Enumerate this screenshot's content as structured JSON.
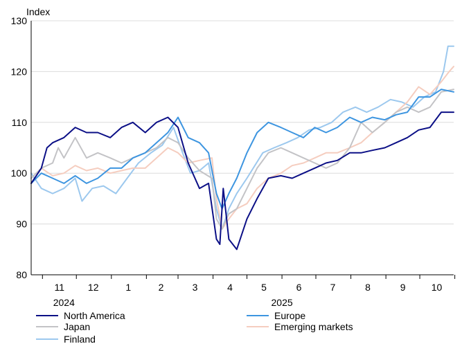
{
  "chart_data": {
    "type": "line",
    "ylabel": "Index",
    "ylim": [
      80,
      130
    ],
    "yticks": [
      80,
      90,
      100,
      110,
      120,
      130
    ],
    "grid": "horizontal",
    "xlim": [
      "2024-10-22",
      "2025-10-31"
    ],
    "month_ticks": [
      "2024-11-01",
      "2024-12-01",
      "2025-01-01",
      "2025-02-01",
      "2025-03-01",
      "2025-04-01",
      "2025-05-01",
      "2025-06-01",
      "2025-07-01",
      "2025-08-01",
      "2025-09-01",
      "2025-10-01",
      "2025-11-01"
    ],
    "month_labels": [
      {
        "text": "11",
        "date": "2024-11-16"
      },
      {
        "text": "12",
        "date": "2024-12-16"
      },
      {
        "text": "1",
        "date": "2025-01-16"
      },
      {
        "text": "2",
        "date": "2025-02-14"
      },
      {
        "text": "3",
        "date": "2025-03-16"
      },
      {
        "text": "4",
        "date": "2025-04-16"
      },
      {
        "text": "5",
        "date": "2025-05-16"
      },
      {
        "text": "6",
        "date": "2025-06-16"
      },
      {
        "text": "7",
        "date": "2025-07-16"
      },
      {
        "text": "8",
        "date": "2025-08-16"
      },
      {
        "text": "9",
        "date": "2025-09-16"
      },
      {
        "text": "10",
        "date": "2025-10-16"
      }
    ],
    "year_labels": [
      {
        "text": "2024",
        "date": "2024-11-20"
      },
      {
        "text": "2025",
        "date": "2025-06-01"
      }
    ],
    "legend_placement": "bottom",
    "series": [
      {
        "name": "Finland",
        "color": "#9cc8ee",
        "points": [
          [
            "2024-10-22",
            100
          ],
          [
            "2024-10-31",
            97
          ],
          [
            "2024-11-10",
            96
          ],
          [
            "2024-11-20",
            97
          ],
          [
            "2024-11-30",
            99
          ],
          [
            "2024-12-06",
            94.5
          ],
          [
            "2024-12-15",
            97
          ],
          [
            "2024-12-25",
            97.5
          ],
          [
            "2025-01-05",
            96
          ],
          [
            "2025-01-15",
            99
          ],
          [
            "2025-01-25",
            102
          ],
          [
            "2025-02-05",
            104
          ],
          [
            "2025-02-15",
            105.5
          ],
          [
            "2025-02-25",
            109
          ],
          [
            "2025-03-05",
            104
          ],
          [
            "2025-03-12",
            100
          ],
          [
            "2025-03-20",
            100.5
          ],
          [
            "2025-03-28",
            102
          ],
          [
            "2025-04-04",
            93
          ],
          [
            "2025-04-09",
            89
          ],
          [
            "2025-04-15",
            93
          ],
          [
            "2025-04-22",
            96
          ],
          [
            "2025-05-01",
            99
          ],
          [
            "2025-05-15",
            104
          ],
          [
            "2025-05-25",
            105
          ],
          [
            "2025-06-05",
            106
          ],
          [
            "2025-06-15",
            107
          ],
          [
            "2025-06-25",
            108.5
          ],
          [
            "2025-07-05",
            109
          ],
          [
            "2025-07-15",
            110
          ],
          [
            "2025-07-25",
            112
          ],
          [
            "2025-08-05",
            113
          ],
          [
            "2025-08-15",
            112
          ],
          [
            "2025-08-25",
            113
          ],
          [
            "2025-09-05",
            114.5
          ],
          [
            "2025-09-15",
            114
          ],
          [
            "2025-09-25",
            113
          ],
          [
            "2025-10-05",
            115
          ],
          [
            "2025-10-15",
            116
          ],
          [
            "2025-10-22",
            120
          ],
          [
            "2025-10-26",
            125
          ],
          [
            "2025-10-31",
            125
          ]
        ]
      },
      {
        "name": "Emerging markets",
        "color": "#f5cdbf",
        "points": [
          [
            "2024-10-22",
            99
          ],
          [
            "2024-10-31",
            101
          ],
          [
            "2024-11-10",
            99.5
          ],
          [
            "2024-11-20",
            100
          ],
          [
            "2024-11-30",
            101.5
          ],
          [
            "2024-12-10",
            100.5
          ],
          [
            "2024-12-20",
            101
          ],
          [
            "2024-12-31",
            100
          ],
          [
            "2025-01-10",
            100.5
          ],
          [
            "2025-01-20",
            101
          ],
          [
            "2025-01-31",
            101
          ],
          [
            "2025-02-10",
            103
          ],
          [
            "2025-02-20",
            105
          ],
          [
            "2025-03-01",
            104
          ],
          [
            "2025-03-10",
            102
          ],
          [
            "2025-03-20",
            102.5
          ],
          [
            "2025-03-31",
            103
          ],
          [
            "2025-04-04",
            95
          ],
          [
            "2025-04-09",
            89
          ],
          [
            "2025-04-15",
            91
          ],
          [
            "2025-04-22",
            93
          ],
          [
            "2025-05-01",
            94
          ],
          [
            "2025-05-10",
            97
          ],
          [
            "2025-05-20",
            99
          ],
          [
            "2025-05-31",
            100
          ],
          [
            "2025-06-10",
            101.5
          ],
          [
            "2025-06-20",
            102
          ],
          [
            "2025-06-30",
            103
          ],
          [
            "2025-07-10",
            104
          ],
          [
            "2025-07-20",
            104
          ],
          [
            "2025-07-31",
            105
          ],
          [
            "2025-08-10",
            106
          ],
          [
            "2025-08-20",
            108
          ],
          [
            "2025-08-31",
            110
          ],
          [
            "2025-09-10",
            112
          ],
          [
            "2025-09-20",
            114
          ],
          [
            "2025-09-30",
            117
          ],
          [
            "2025-10-10",
            115.5
          ],
          [
            "2025-10-20",
            118
          ],
          [
            "2025-10-27",
            120
          ],
          [
            "2025-10-31",
            121
          ]
        ]
      },
      {
        "name": "Japan",
        "color": "#c3c3c6",
        "points": [
          [
            "2024-10-22",
            99
          ],
          [
            "2024-10-31",
            101
          ],
          [
            "2024-11-10",
            102
          ],
          [
            "2024-11-15",
            105
          ],
          [
            "2024-11-20",
            103
          ],
          [
            "2024-11-30",
            107
          ],
          [
            "2024-12-10",
            103
          ],
          [
            "2024-12-20",
            104
          ],
          [
            "2024-12-31",
            103
          ],
          [
            "2025-01-10",
            102
          ],
          [
            "2025-01-20",
            103
          ],
          [
            "2025-01-31",
            104
          ],
          [
            "2025-02-10",
            105
          ],
          [
            "2025-02-20",
            107
          ],
          [
            "2025-03-01",
            106
          ],
          [
            "2025-03-10",
            103
          ],
          [
            "2025-03-20",
            100.5
          ],
          [
            "2025-03-31",
            99
          ],
          [
            "2025-04-04",
            91
          ],
          [
            "2025-04-09",
            89
          ],
          [
            "2025-04-15",
            92
          ],
          [
            "2025-04-22",
            93
          ],
          [
            "2025-05-01",
            97
          ],
          [
            "2025-05-10",
            101
          ],
          [
            "2025-05-20",
            104
          ],
          [
            "2025-05-31",
            105
          ],
          [
            "2025-06-10",
            104
          ],
          [
            "2025-06-20",
            103
          ],
          [
            "2025-06-30",
            102
          ],
          [
            "2025-07-10",
            101
          ],
          [
            "2025-07-20",
            102
          ],
          [
            "2025-07-31",
            105
          ],
          [
            "2025-08-10",
            110
          ],
          [
            "2025-08-20",
            108
          ],
          [
            "2025-08-31",
            110
          ],
          [
            "2025-09-10",
            112
          ],
          [
            "2025-09-20",
            113
          ],
          [
            "2025-09-30",
            112
          ],
          [
            "2025-10-10",
            113
          ],
          [
            "2025-10-20",
            116
          ],
          [
            "2025-10-31",
            116.5
          ]
        ]
      },
      {
        "name": "Europe",
        "color": "#3d95e0",
        "points": [
          [
            "2024-10-22",
            98
          ],
          [
            "2024-10-31",
            100
          ],
          [
            "2024-11-10",
            99
          ],
          [
            "2024-11-20",
            98
          ],
          [
            "2024-11-30",
            99.5
          ],
          [
            "2024-12-10",
            98
          ],
          [
            "2024-12-20",
            99
          ],
          [
            "2024-12-31",
            101
          ],
          [
            "2025-01-10",
            101
          ],
          [
            "2025-01-20",
            103
          ],
          [
            "2025-01-31",
            104
          ],
          [
            "2025-02-10",
            106
          ],
          [
            "2025-02-20",
            108
          ],
          [
            "2025-03-01",
            111
          ],
          [
            "2025-03-10",
            107
          ],
          [
            "2025-03-20",
            106
          ],
          [
            "2025-03-28",
            104
          ],
          [
            "2025-04-04",
            96
          ],
          [
            "2025-04-09",
            93
          ],
          [
            "2025-04-15",
            96
          ],
          [
            "2025-04-22",
            99
          ],
          [
            "2025-05-01",
            104
          ],
          [
            "2025-05-10",
            108
          ],
          [
            "2025-05-20",
            110
          ],
          [
            "2025-05-31",
            109
          ],
          [
            "2025-06-10",
            108
          ],
          [
            "2025-06-20",
            107
          ],
          [
            "2025-06-30",
            109
          ],
          [
            "2025-07-10",
            108
          ],
          [
            "2025-07-20",
            109
          ],
          [
            "2025-07-31",
            111
          ],
          [
            "2025-08-10",
            110
          ],
          [
            "2025-08-20",
            111
          ],
          [
            "2025-08-31",
            110.5
          ],
          [
            "2025-09-10",
            111.5
          ],
          [
            "2025-09-20",
            112
          ],
          [
            "2025-09-30",
            115
          ],
          [
            "2025-10-10",
            115
          ],
          [
            "2025-10-20",
            116.5
          ],
          [
            "2025-10-31",
            116
          ]
        ]
      },
      {
        "name": "North America",
        "color": "#0b0f86",
        "points": [
          [
            "2024-10-22",
            98
          ],
          [
            "2024-10-31",
            101
          ],
          [
            "2024-11-05",
            105
          ],
          [
            "2024-11-10",
            106
          ],
          [
            "2024-11-20",
            107
          ],
          [
            "2024-11-30",
            109
          ],
          [
            "2024-12-10",
            108
          ],
          [
            "2024-12-20",
            108
          ],
          [
            "2024-12-31",
            107
          ],
          [
            "2025-01-10",
            109
          ],
          [
            "2025-01-20",
            110
          ],
          [
            "2025-01-31",
            108
          ],
          [
            "2025-02-10",
            110
          ],
          [
            "2025-02-20",
            111
          ],
          [
            "2025-03-01",
            109
          ],
          [
            "2025-03-10",
            102
          ],
          [
            "2025-03-20",
            97
          ],
          [
            "2025-03-28",
            98
          ],
          [
            "2025-04-04",
            87
          ],
          [
            "2025-04-07",
            86
          ],
          [
            "2025-04-10",
            97
          ],
          [
            "2025-04-15",
            87
          ],
          [
            "2025-04-22",
            85
          ],
          [
            "2025-05-01",
            91
          ],
          [
            "2025-05-10",
            95
          ],
          [
            "2025-05-20",
            99
          ],
          [
            "2025-05-31",
            99.5
          ],
          [
            "2025-06-10",
            99
          ],
          [
            "2025-06-20",
            100
          ],
          [
            "2025-06-30",
            101
          ],
          [
            "2025-07-10",
            102
          ],
          [
            "2025-07-20",
            102.5
          ],
          [
            "2025-07-31",
            104
          ],
          [
            "2025-08-10",
            104
          ],
          [
            "2025-08-20",
            104.5
          ],
          [
            "2025-08-31",
            105
          ],
          [
            "2025-09-10",
            106
          ],
          [
            "2025-09-20",
            107
          ],
          [
            "2025-09-30",
            108.5
          ],
          [
            "2025-10-10",
            109
          ],
          [
            "2025-10-20",
            112
          ],
          [
            "2025-10-31",
            112
          ]
        ]
      }
    ],
    "legend": [
      {
        "name": "North America",
        "color": "#0b0f86"
      },
      {
        "name": "Europe",
        "color": "#3d95e0"
      },
      {
        "name": "Japan",
        "color": "#c3c3c6"
      },
      {
        "name": "Emerging markets",
        "color": "#f5cdbf"
      },
      {
        "name": "Finland",
        "color": "#9cc8ee"
      }
    ]
  }
}
